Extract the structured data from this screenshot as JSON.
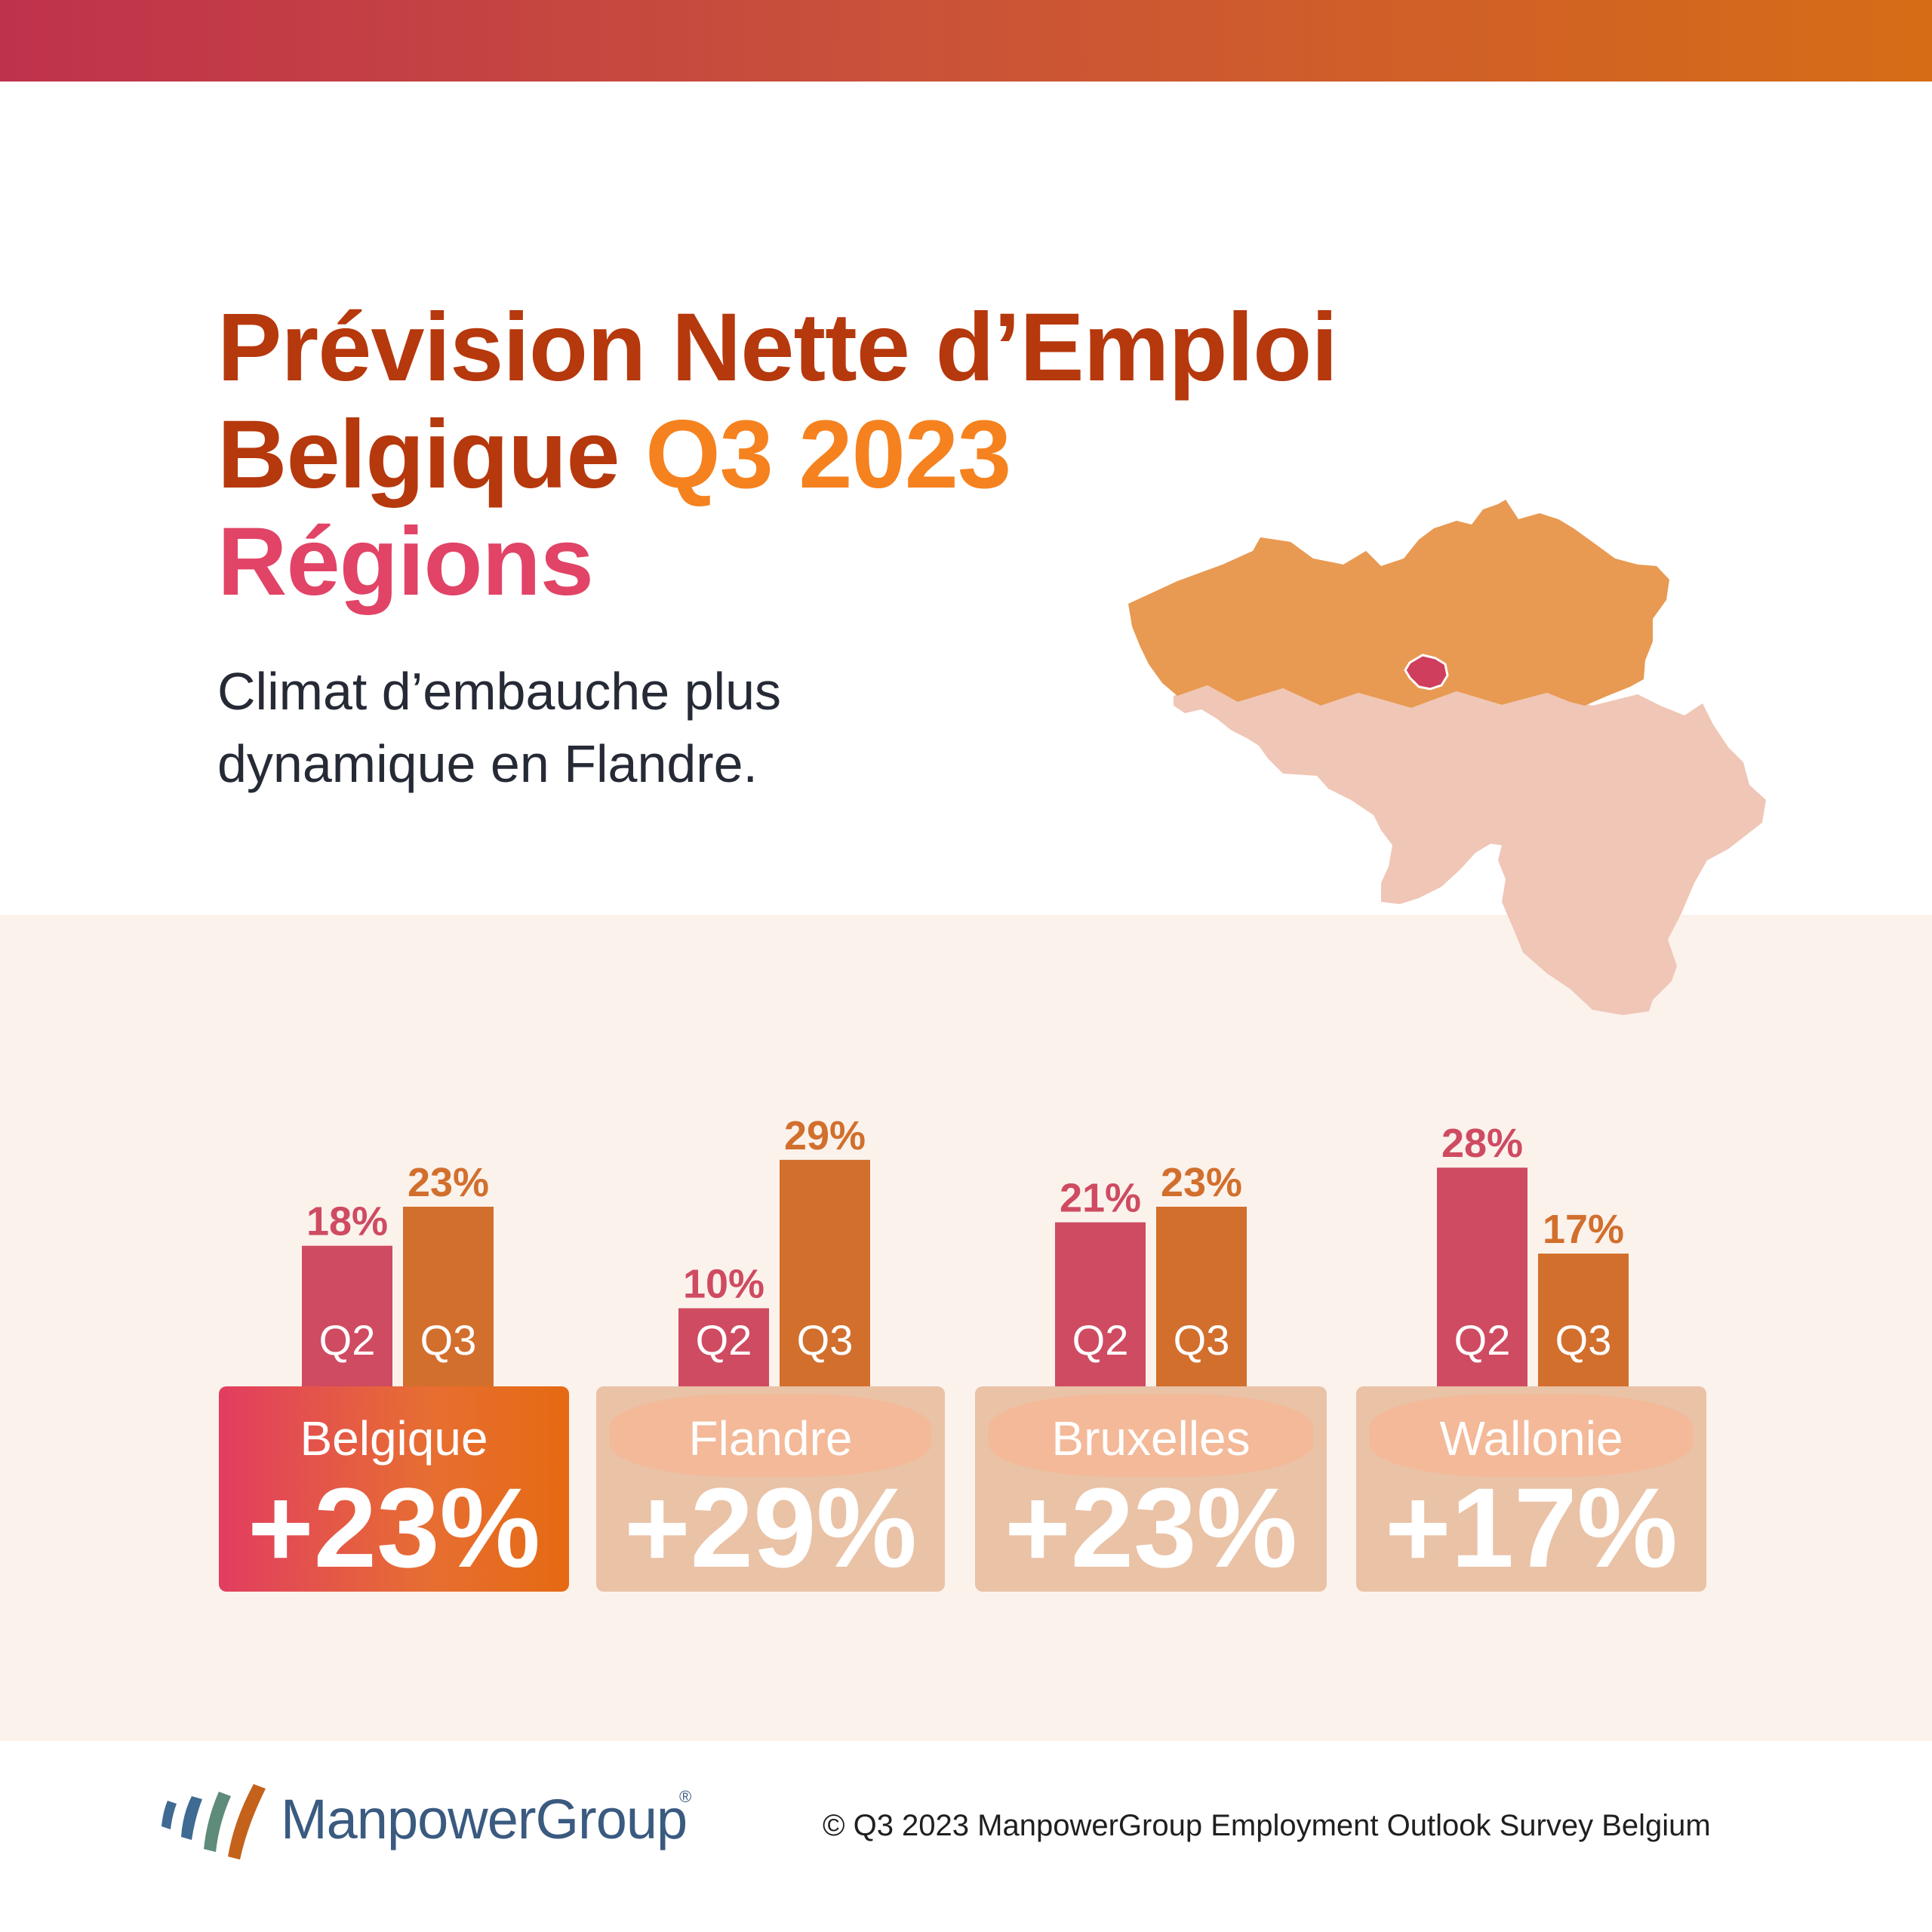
{
  "title": {
    "line1": "Prévision Nette d’Emploi",
    "line2_a": "Belgique",
    "line2_b": "Q3 2023",
    "line3": "Régions"
  },
  "subtitle": "Climat d’embauche plus dynamique en Flandre.",
  "colors": {
    "q2": "#cf4b61",
    "q3": "#d26f2d",
    "title_dark": "#b6380d",
    "title_orange": "#f5821f",
    "title_pink": "#e14466",
    "flanders": "#e89a52",
    "wallonia": "#f0c6b6",
    "brussels": "#cf3e5d"
  },
  "chart_data": {
    "type": "bar",
    "categories": [
      "Belgique",
      "Flandre",
      "Bruxelles",
      "Wallonie"
    ],
    "series": [
      {
        "name": "Q2",
        "values": [
          18,
          10,
          21,
          28
        ]
      },
      {
        "name": "Q3",
        "values": [
          23,
          29,
          23,
          17
        ]
      }
    ],
    "value_labels": {
      "Q2": [
        "18%",
        "10%",
        "21%",
        "28%"
      ],
      "Q3": [
        "23%",
        "29%",
        "23%",
        "17%"
      ]
    },
    "title": "",
    "xlabel": "",
    "ylabel": ""
  },
  "cards": [
    {
      "name": "Belgique",
      "value": "+23%",
      "highlight": true
    },
    {
      "name": "Flandre",
      "value": "+29%",
      "highlight": false
    },
    {
      "name": "Bruxelles",
      "value": "+23%",
      "highlight": false
    },
    {
      "name": "Wallonie",
      "value": "+17%",
      "highlight": false
    }
  ],
  "logo": {
    "text": "ManpowerGroup",
    "reg": "®"
  },
  "footer": {
    "copyright": "© Q3 2023 ManpowerGroup Employment Outlook Survey Belgium"
  }
}
